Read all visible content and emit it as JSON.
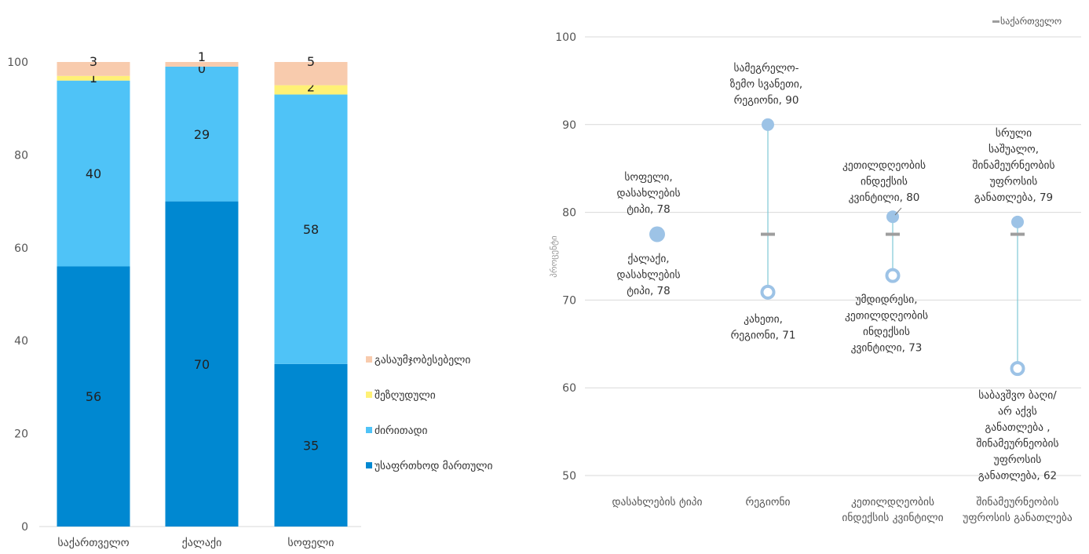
{
  "chart_data": [
    {
      "type": "bar",
      "stacked": true,
      "categories": [
        "საქართველო",
        "ქალაქი",
        "სოფელი"
      ],
      "series": [
        {
          "name": "უსაფრთხოდ მართული",
          "values": [
            56,
            70,
            35
          ],
          "color": "#0088d1"
        },
        {
          "name": "ძირითადი",
          "values": [
            40,
            29,
            58
          ],
          "color": "#4fc3f7"
        },
        {
          "name": "შეზღუდული",
          "values": [
            1,
            0,
            2
          ],
          "color": "#fff176"
        },
        {
          "name": "გასაუმჯობესებელი",
          "values": [
            3,
            1,
            5
          ],
          "color": "#f8cbad"
        }
      ],
      "ylim": [
        0,
        100
      ],
      "yticks": [
        0,
        20,
        40,
        60,
        80,
        100
      ],
      "legend_position": "right",
      "grid": false
    },
    {
      "type": "scatter",
      "subtype": "dumbbell",
      "categories": [
        "დასახლების ტიპი",
        "რეგიონი",
        "კეთილდღეობის ინდექსის კვინტილი",
        "შინამეურნეობის უფროსის განათლება"
      ],
      "reference": {
        "name": "საქართველო",
        "value": 77.5,
        "color": "#9e9e9e"
      },
      "high": [
        {
          "value": 77.5,
          "label": [
            "სოფელი,",
            "დასახლების",
            "ტიპი, 78"
          ]
        },
        {
          "value": 90,
          "label": [
            "სამეგრელო-",
            "ზემო სვანეთი,",
            "რეგიონი, 90"
          ]
        },
        {
          "value": 79.5,
          "label": [
            "კეთილდღეობის",
            "ინდექსის",
            "კვინტილი, 80"
          ]
        },
        {
          "value": 78.9,
          "label": [
            "სრული",
            "საშუალო,",
            "შინამეურნეობის",
            "უფროსის",
            "განათლება, 79"
          ]
        }
      ],
      "low": [
        {
          "value": 77.5,
          "label": [
            "ქალაქი,",
            "დასახლების",
            "ტიპი, 78"
          ]
        },
        {
          "value": 70.9,
          "label": [
            "კახეთი,",
            "რეგიონი, 71"
          ]
        },
        {
          "value": 72.8,
          "label": [
            "უმდიდრესი,",
            "კეთილდღეობის",
            "ინდექსის",
            "კვინტილი, 73"
          ]
        },
        {
          "value": 62.2,
          "label": [
            "საბავშვო ბაღი/",
            "არ აქვს",
            "განათლება ,",
            "შინამეურნეობის",
            "უფროსის",
            "განათლება, 62"
          ]
        }
      ],
      "ylabel": "პროცენტი",
      "ylim": [
        50,
        100
      ],
      "yticks": [
        50,
        60,
        70,
        80,
        90,
        100
      ],
      "legend_position": "top-right",
      "grid": true,
      "colors": {
        "marker": "#9dc3e6",
        "line": "#7fc8d6",
        "grid": "#d9d9d9"
      }
    }
  ]
}
